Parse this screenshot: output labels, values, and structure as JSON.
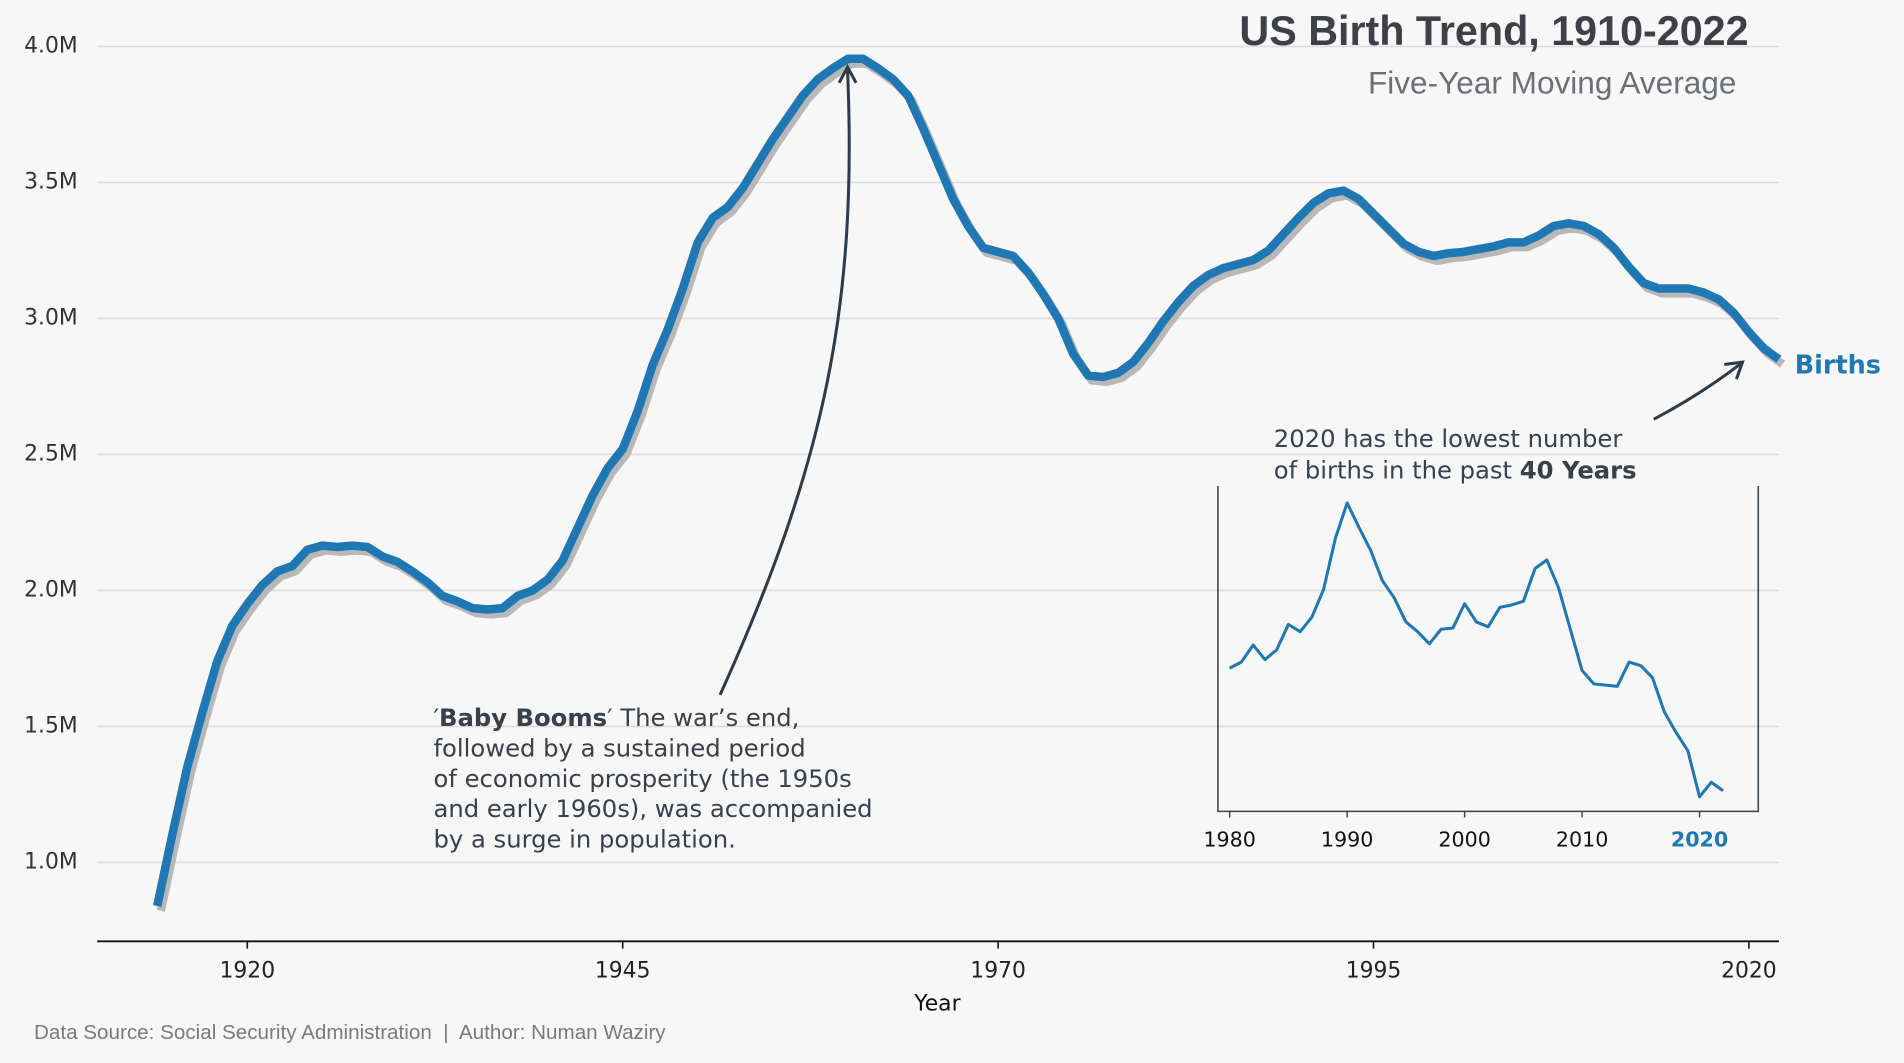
{
  "chart_data": [
    {
      "type": "line",
      "title": "US Birth Trend, 1910-2022",
      "subtitle": "Five-Year Moving Average",
      "x_label": "Year",
      "source": "Data Source: Social Security Administration  |  Author: Numan Waziry",
      "x": [
        1914,
        1915,
        1916,
        1917,
        1918,
        1919,
        1920,
        1921,
        1922,
        1923,
        1924,
        1925,
        1926,
        1927,
        1928,
        1929,
        1930,
        1931,
        1932,
        1933,
        1934,
        1935,
        1936,
        1937,
        1938,
        1939,
        1940,
        1941,
        1942,
        1943,
        1944,
        1945,
        1946,
        1947,
        1948,
        1949,
        1950,
        1951,
        1952,
        1953,
        1954,
        1955,
        1956,
        1957,
        1958,
        1959,
        1960,
        1961,
        1962,
        1963,
        1964,
        1965,
        1966,
        1967,
        1968,
        1969,
        1970,
        1971,
        1972,
        1973,
        1974,
        1975,
        1976,
        1977,
        1978,
        1979,
        1980,
        1981,
        1982,
        1983,
        1984,
        1985,
        1986,
        1987,
        1988,
        1989,
        1990,
        1991,
        1992,
        1993,
        1994,
        1995,
        1996,
        1997,
        1998,
        1999,
        2000,
        2001,
        2002,
        2003,
        2004,
        2005,
        2006,
        2007,
        2008,
        2009,
        2010,
        2011,
        2012,
        2013,
        2014,
        2015,
        2016,
        2017,
        2018,
        2019,
        2020,
        2021,
        2022
      ],
      "series": [
        {
          "name": "Births",
          "color": "#1f77b4",
          "values": [
            840000,
            1100000,
            1350000,
            1550000,
            1740000,
            1870000,
            1950000,
            2020000,
            2070000,
            2090000,
            2150000,
            2165000,
            2160000,
            2165000,
            2160000,
            2125000,
            2105000,
            2070000,
            2030000,
            1980000,
            1960000,
            1935000,
            1930000,
            1935000,
            1980000,
            2000000,
            2040000,
            2110000,
            2230000,
            2350000,
            2450000,
            2520000,
            2660000,
            2830000,
            2960000,
            3110000,
            3280000,
            3370000,
            3410000,
            3480000,
            3570000,
            3660000,
            3740000,
            3820000,
            3880000,
            3920000,
            3955000,
            3955000,
            3920000,
            3880000,
            3820000,
            3700000,
            3570000,
            3440000,
            3340000,
            3260000,
            3245000,
            3230000,
            3170000,
            3090000,
            3000000,
            2870000,
            2790000,
            2785000,
            2800000,
            2840000,
            2910000,
            2990000,
            3060000,
            3120000,
            3160000,
            3185000,
            3200000,
            3215000,
            3250000,
            3310000,
            3370000,
            3425000,
            3460000,
            3470000,
            3440000,
            3385000,
            3330000,
            3275000,
            3245000,
            3230000,
            3240000,
            3245000,
            3255000,
            3265000,
            3280000,
            3280000,
            3305000,
            3340000,
            3350000,
            3340000,
            3310000,
            3260000,
            3190000,
            3130000,
            3110000,
            3110000,
            3110000,
            3095000,
            3070000,
            3020000,
            2950000,
            2890000,
            2850000
          ]
        }
      ],
      "xlim": [
        1910,
        2022
      ],
      "xticks": [
        1920,
        1945,
        1970,
        1995,
        2020
      ],
      "ylim": [
        710000,
        4170000
      ],
      "yticks": [
        {
          "value": 1000000,
          "label": "1.0M"
        },
        {
          "value": 1500000,
          "label": "1.5M"
        },
        {
          "value": 2000000,
          "label": "2.0M"
        },
        {
          "value": 2500000,
          "label": "2.5M"
        },
        {
          "value": 3000000,
          "label": "3.0M"
        },
        {
          "value": 3500000,
          "label": "3.5M"
        },
        {
          "value": 4000000,
          "label": "4.0M"
        }
      ],
      "grid": true,
      "annotations": [
        {
          "prefix": "′",
          "bold": "Baby Booms",
          "suffix": "′ The war’s end,",
          "lines": [
            "followed by a sustained period",
            "of economic prosperity (the 1950s",
            "and early 1960s), was accompanied",
            "by a surge in population."
          ]
        },
        {
          "lines": [
            "2020 has the lowest number",
            "of births in the past "
          ],
          "bold": "40 Years"
        }
      ]
    },
    {
      "type": "line",
      "x": [
        1980,
        1981,
        1982,
        1983,
        1984,
        1985,
        1986,
        1987,
        1988,
        1989,
        1990,
        1991,
        1992,
        1993,
        1994,
        1995,
        1996,
        1997,
        1998,
        1999,
        2000,
        2001,
        2002,
        2003,
        2004,
        2005,
        2006,
        2007,
        2008,
        2009,
        2010,
        2011,
        2012,
        2013,
        2014,
        2015,
        2016,
        2017,
        2018,
        2019,
        2020,
        2021,
        2022
      ],
      "series": [
        {
          "color": "#1f77b4",
          "values": [
            118,
            123,
            137,
            125,
            133,
            154,
            148,
            160,
            183,
            225,
            254,
            234,
            215,
            190,
            176,
            156,
            148,
            138,
            150,
            151,
            171,
            156,
            152,
            168,
            170,
            173,
            200,
            207,
            184,
            150,
            116,
            105,
            104,
            103,
            123,
            120,
            110,
            82,
            65,
            50,
            12,
            24,
            17
          ]
        }
      ],
      "xlim": [
        1979,
        2025
      ],
      "ylim": [
        0,
        268
      ],
      "xticks": [
        1980,
        1990,
        2000,
        2010,
        2020
      ],
      "highlight_xtick": 2020,
      "highlight_color": "#1f77b4"
    }
  ]
}
